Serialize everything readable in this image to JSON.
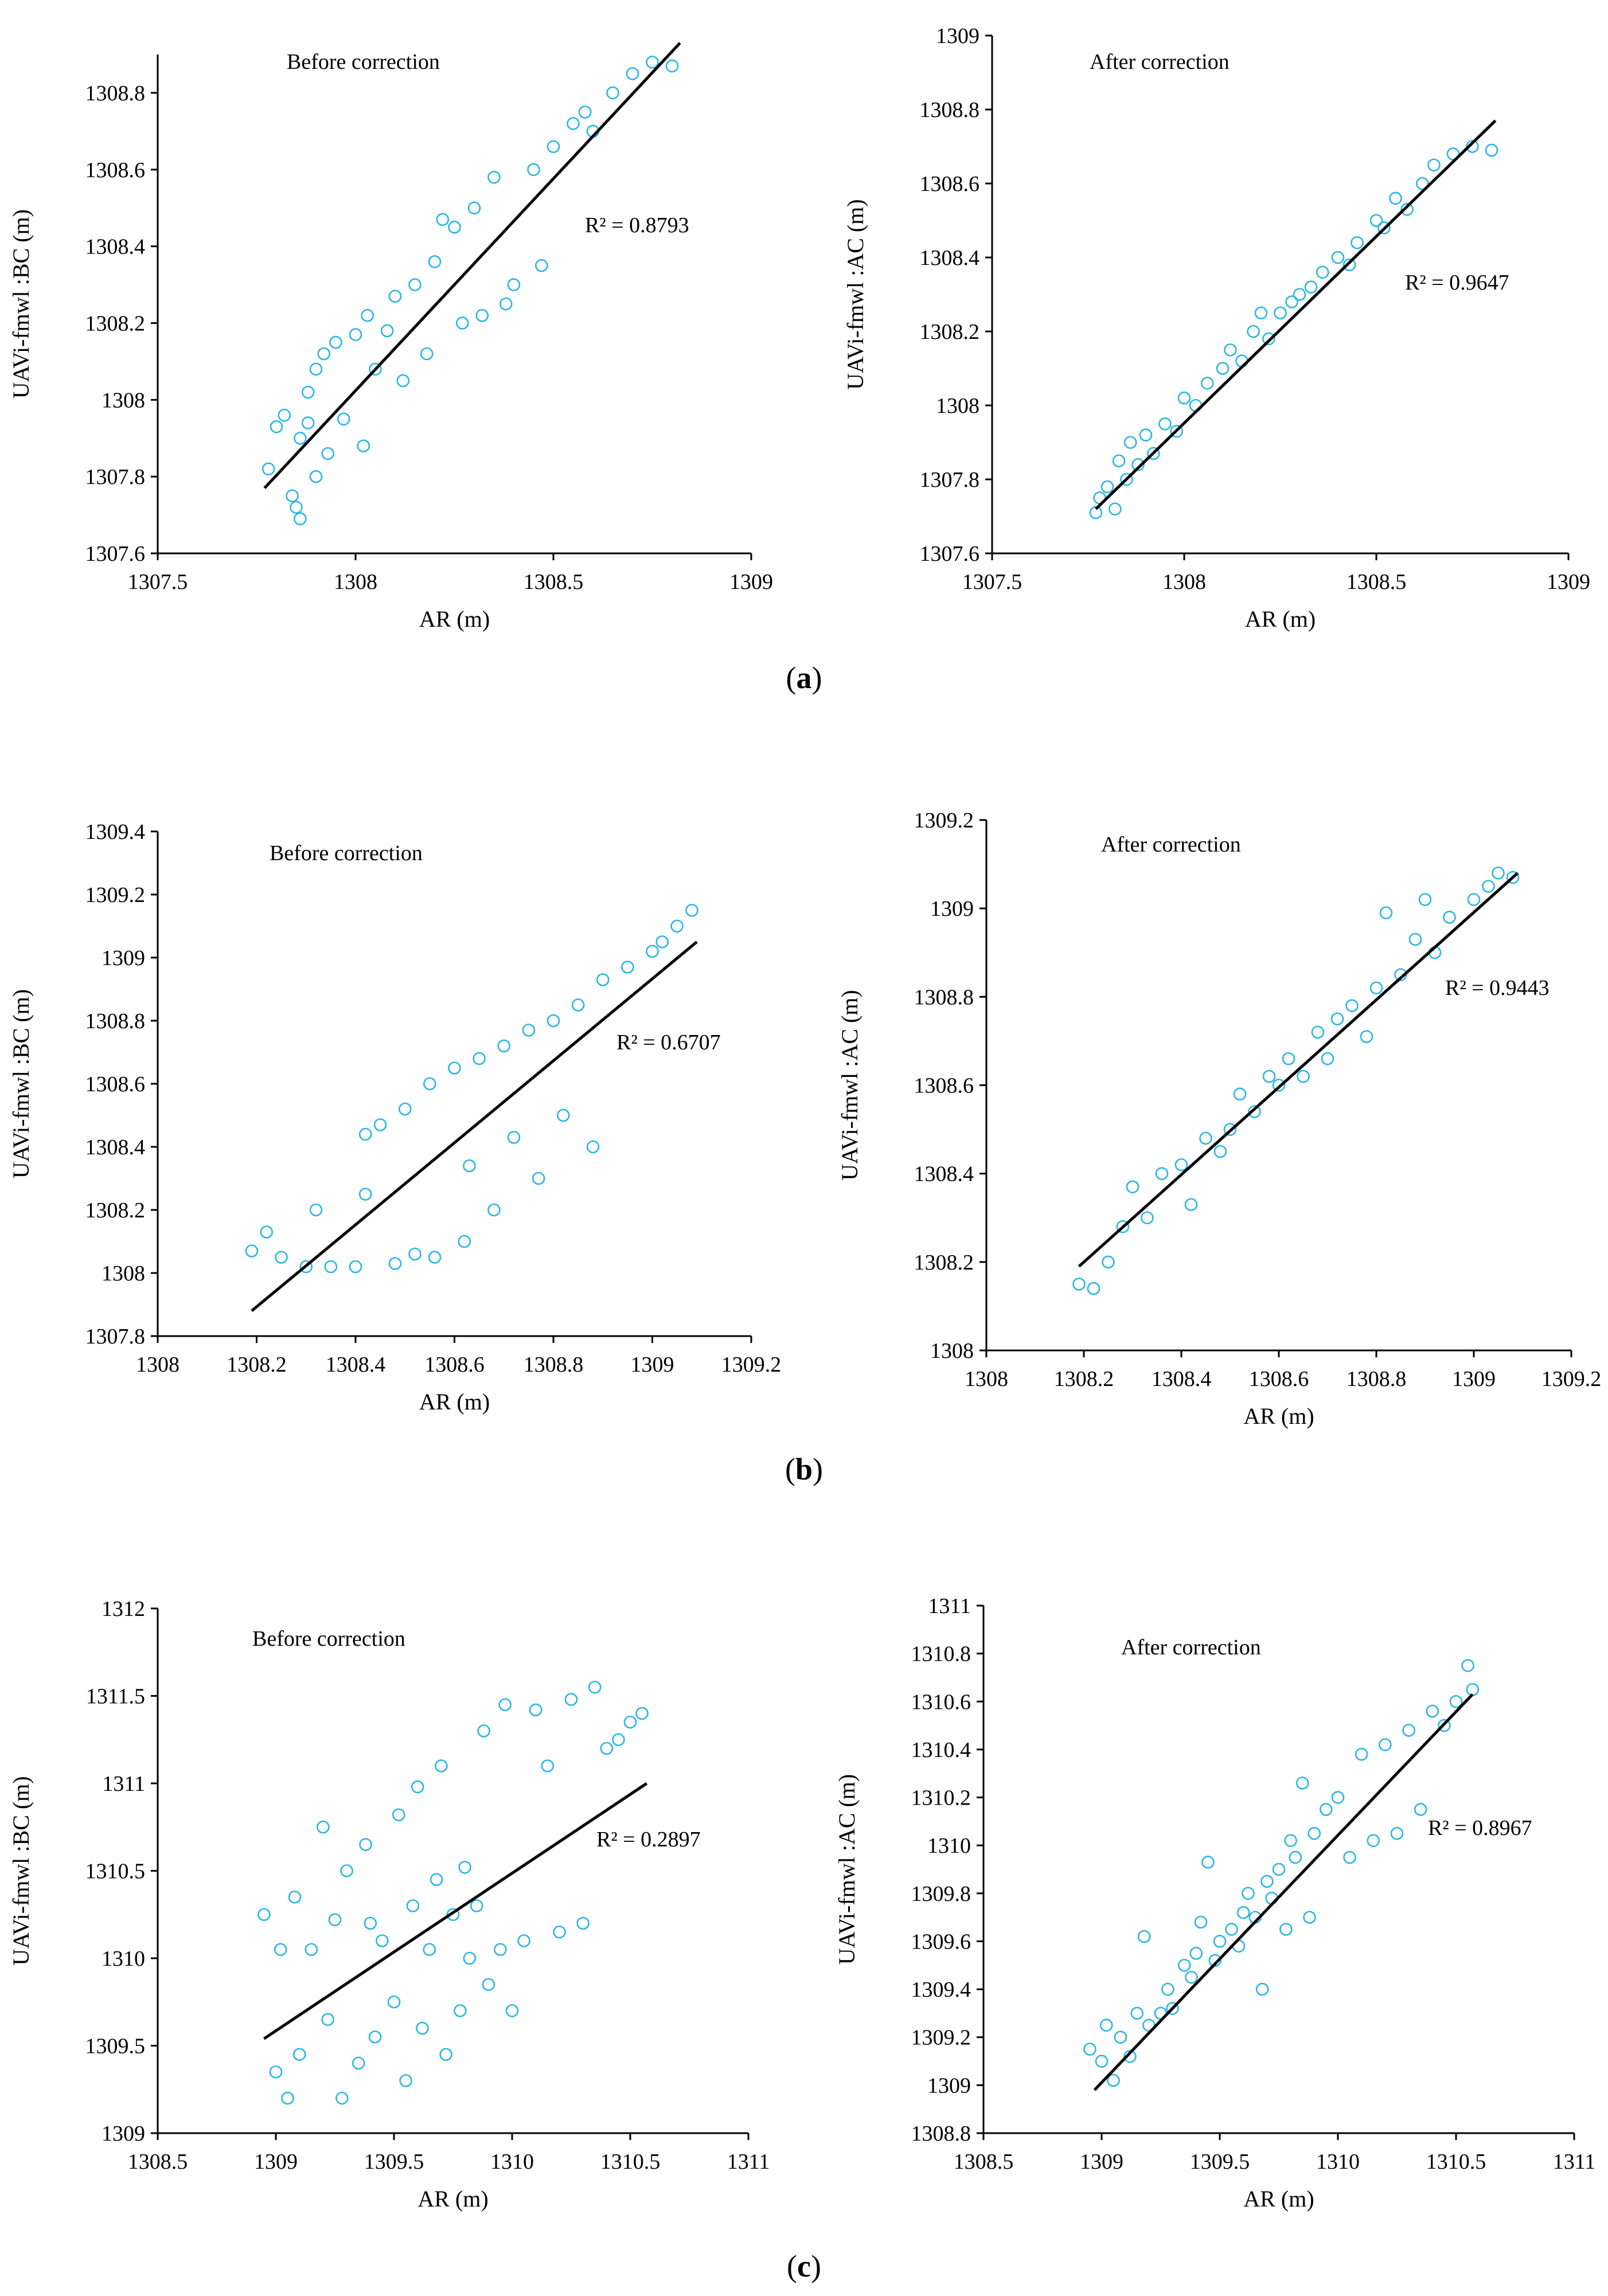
{
  "panel_labels": [
    "(a)",
    "(b)",
    "(c)"
  ],
  "chart_data": [
    {
      "type": "scatter",
      "annotation": "Before correction",
      "r2_label": "R² = 0.8793",
      "xlabel": "AR (m)",
      "ylabel": "UAVi-fmwl :BC (m)",
      "xlim": [
        1307.5,
        1309
      ],
      "ylim": [
        1307.6,
        1308.9
      ],
      "xticks": [
        "1307.5",
        "1308",
        "1308.5",
        "1309"
      ],
      "yticks": [
        "1307.6",
        "1307.8",
        "1308",
        "1308.2",
        "1308.4",
        "1308.6",
        "1308.8"
      ],
      "trendline": [
        [
          1307.77,
          1307.77
        ],
        [
          1308.82,
          1308.93
        ]
      ],
      "points": [
        [
          1307.78,
          1307.82
        ],
        [
          1307.8,
          1307.93
        ],
        [
          1307.82,
          1307.96
        ],
        [
          1307.84,
          1307.75
        ],
        [
          1307.85,
          1307.72
        ],
        [
          1307.86,
          1307.69
        ],
        [
          1307.86,
          1307.9
        ],
        [
          1307.88,
          1307.94
        ],
        [
          1307.88,
          1308.02
        ],
        [
          1307.9,
          1307.8
        ],
        [
          1307.9,
          1308.08
        ],
        [
          1307.92,
          1308.12
        ],
        [
          1307.93,
          1307.86
        ],
        [
          1307.95,
          1308.15
        ],
        [
          1307.97,
          1307.95
        ],
        [
          1308.0,
          1308.17
        ],
        [
          1308.02,
          1307.88
        ],
        [
          1308.03,
          1308.22
        ],
        [
          1308.05,
          1308.08
        ],
        [
          1308.08,
          1308.18
        ],
        [
          1308.1,
          1308.27
        ],
        [
          1308.12,
          1308.05
        ],
        [
          1308.15,
          1308.3
        ],
        [
          1308.18,
          1308.12
        ],
        [
          1308.2,
          1308.36
        ],
        [
          1308.22,
          1308.47
        ],
        [
          1308.25,
          1308.45
        ],
        [
          1308.27,
          1308.2
        ],
        [
          1308.3,
          1308.5
        ],
        [
          1308.32,
          1308.22
        ],
        [
          1308.35,
          1308.58
        ],
        [
          1308.38,
          1308.25
        ],
        [
          1308.4,
          1308.3
        ],
        [
          1308.45,
          1308.6
        ],
        [
          1308.47,
          1308.35
        ],
        [
          1308.5,
          1308.66
        ],
        [
          1308.55,
          1308.72
        ],
        [
          1308.58,
          1308.75
        ],
        [
          1308.6,
          1308.7
        ],
        [
          1308.65,
          1308.8
        ],
        [
          1308.7,
          1308.85
        ],
        [
          1308.75,
          1308.88
        ],
        [
          1308.8,
          1308.87
        ]
      ]
    },
    {
      "type": "scatter",
      "annotation": "After correction",
      "r2_label": "R² = 0.9647",
      "xlabel": "AR (m)",
      "ylabel": "UAVi-fmwl :AC (m)",
      "xlim": [
        1307.5,
        1309
      ],
      "ylim": [
        1307.6,
        1309
      ],
      "xticks": [
        "1307.5",
        "1308",
        "1308.5",
        "1309"
      ],
      "yticks": [
        "1307.6",
        "1307.8",
        "1308",
        "1308.2",
        "1308.4",
        "1308.6",
        "1308.8",
        "1309"
      ],
      "trendline": [
        [
          1307.77,
          1307.72
        ],
        [
          1308.81,
          1308.77
        ]
      ],
      "points": [
        [
          1307.77,
          1307.71
        ],
        [
          1307.78,
          1307.75
        ],
        [
          1307.8,
          1307.78
        ],
        [
          1307.82,
          1307.72
        ],
        [
          1307.83,
          1307.85
        ],
        [
          1307.85,
          1307.8
        ],
        [
          1307.86,
          1307.9
        ],
        [
          1307.88,
          1307.84
        ],
        [
          1307.9,
          1307.92
        ],
        [
          1307.92,
          1307.87
        ],
        [
          1307.95,
          1307.95
        ],
        [
          1307.98,
          1307.93
        ],
        [
          1308.0,
          1308.02
        ],
        [
          1308.03,
          1308.0
        ],
        [
          1308.06,
          1308.06
        ],
        [
          1308.1,
          1308.1
        ],
        [
          1308.12,
          1308.15
        ],
        [
          1308.15,
          1308.12
        ],
        [
          1308.18,
          1308.2
        ],
        [
          1308.2,
          1308.25
        ],
        [
          1308.22,
          1308.18
        ],
        [
          1308.25,
          1308.25
        ],
        [
          1308.28,
          1308.28
        ],
        [
          1308.3,
          1308.3
        ],
        [
          1308.33,
          1308.32
        ],
        [
          1308.36,
          1308.36
        ],
        [
          1308.4,
          1308.4
        ],
        [
          1308.43,
          1308.38
        ],
        [
          1308.45,
          1308.44
        ],
        [
          1308.5,
          1308.5
        ],
        [
          1308.52,
          1308.48
        ],
        [
          1308.55,
          1308.56
        ],
        [
          1308.58,
          1308.53
        ],
        [
          1308.62,
          1308.6
        ],
        [
          1308.65,
          1308.65
        ],
        [
          1308.7,
          1308.68
        ],
        [
          1308.75,
          1308.7
        ],
        [
          1308.8,
          1308.69
        ]
      ]
    },
    {
      "type": "scatter",
      "annotation": "Before correction",
      "r2_label": "R² = 0.6707",
      "xlabel": "AR (m)",
      "ylabel": "UAVi-fmwl :BC (m)",
      "xlim": [
        1308,
        1309.2
      ],
      "ylim": [
        1307.8,
        1309.4
      ],
      "xticks": [
        "1308",
        "1308.2",
        "1308.4",
        "1308.6",
        "1308.8",
        "1309",
        "1309.2"
      ],
      "yticks": [
        "1307.8",
        "1308",
        "1308.2",
        "1308.4",
        "1308.6",
        "1308.8",
        "1309",
        "1309.2",
        "1309.4"
      ],
      "trendline": [
        [
          1308.19,
          1307.88
        ],
        [
          1309.09,
          1309.05
        ]
      ],
      "points": [
        [
          1308.19,
          1308.07
        ],
        [
          1308.22,
          1308.13
        ],
        [
          1308.25,
          1308.05
        ],
        [
          1308.3,
          1308.02
        ],
        [
          1308.32,
          1308.2
        ],
        [
          1308.35,
          1308.02
        ],
        [
          1308.4,
          1308.02
        ],
        [
          1308.42,
          1308.25
        ],
        [
          1308.42,
          1308.44
        ],
        [
          1308.45,
          1308.47
        ],
        [
          1308.48,
          1308.03
        ],
        [
          1308.5,
          1308.52
        ],
        [
          1308.52,
          1308.06
        ],
        [
          1308.55,
          1308.6
        ],
        [
          1308.56,
          1308.05
        ],
        [
          1308.6,
          1308.65
        ],
        [
          1308.62,
          1308.1
        ],
        [
          1308.63,
          1308.34
        ],
        [
          1308.65,
          1308.68
        ],
        [
          1308.68,
          1308.2
        ],
        [
          1308.7,
          1308.72
        ],
        [
          1308.72,
          1308.43
        ],
        [
          1308.75,
          1308.77
        ],
        [
          1308.77,
          1308.3
        ],
        [
          1308.8,
          1308.8
        ],
        [
          1308.82,
          1308.5
        ],
        [
          1308.85,
          1308.85
        ],
        [
          1308.88,
          1308.4
        ],
        [
          1308.9,
          1308.93
        ],
        [
          1308.95,
          1308.97
        ],
        [
          1309.0,
          1309.02
        ],
        [
          1309.02,
          1309.05
        ],
        [
          1309.05,
          1309.1
        ],
        [
          1309.08,
          1309.15
        ]
      ]
    },
    {
      "type": "scatter",
      "annotation": "After correction",
      "r2_label": "R² = 0.9443",
      "xlabel": "AR (m)",
      "ylabel": "UAVi-fmwl :AC (m)",
      "xlim": [
        1308,
        1309.2
      ],
      "ylim": [
        1308,
        1309.2
      ],
      "xticks": [
        "1308",
        "1308.2",
        "1308.4",
        "1308.6",
        "1308.8",
        "1309",
        "1309.2"
      ],
      "yticks": [
        "1308",
        "1308.2",
        "1308.4",
        "1308.6",
        "1308.8",
        "1309",
        "1309.2"
      ],
      "trendline": [
        [
          1308.19,
          1308.19
        ],
        [
          1309.09,
          1309.08
        ]
      ],
      "points": [
        [
          1308.19,
          1308.15
        ],
        [
          1308.22,
          1308.14
        ],
        [
          1308.25,
          1308.2
        ],
        [
          1308.28,
          1308.28
        ],
        [
          1308.3,
          1308.37
        ],
        [
          1308.33,
          1308.3
        ],
        [
          1308.36,
          1308.4
        ],
        [
          1308.4,
          1308.42
        ],
        [
          1308.42,
          1308.33
        ],
        [
          1308.45,
          1308.48
        ],
        [
          1308.48,
          1308.45
        ],
        [
          1308.5,
          1308.5
        ],
        [
          1308.52,
          1308.58
        ],
        [
          1308.55,
          1308.54
        ],
        [
          1308.58,
          1308.62
        ],
        [
          1308.6,
          1308.6
        ],
        [
          1308.62,
          1308.66
        ],
        [
          1308.65,
          1308.62
        ],
        [
          1308.68,
          1308.72
        ],
        [
          1308.7,
          1308.66
        ],
        [
          1308.72,
          1308.75
        ],
        [
          1308.75,
          1308.78
        ],
        [
          1308.78,
          1308.71
        ],
        [
          1308.8,
          1308.82
        ],
        [
          1308.82,
          1308.99
        ],
        [
          1308.85,
          1308.85
        ],
        [
          1308.88,
          1308.93
        ],
        [
          1308.9,
          1309.02
        ],
        [
          1308.92,
          1308.9
        ],
        [
          1308.95,
          1308.98
        ],
        [
          1309.0,
          1309.02
        ],
        [
          1309.03,
          1309.05
        ],
        [
          1309.05,
          1309.08
        ],
        [
          1309.08,
          1309.07
        ]
      ]
    },
    {
      "type": "scatter",
      "annotation": "Before correction",
      "r2_label": "R² = 0.2897",
      "xlabel": "AR (m)",
      "ylabel": "UAVi-fmwl :BC (m)",
      "xlim": [
        1308.5,
        1311
      ],
      "ylim": [
        1309,
        1312
      ],
      "xticks": [
        "1308.5",
        "1309",
        "1309.5",
        "1310",
        "1310.5",
        "1311"
      ],
      "yticks": [
        "1309",
        "1309.5",
        "1310",
        "1310.5",
        "1311",
        "1311.5",
        "1312"
      ],
      "trendline": [
        [
          1308.95,
          1309.54
        ],
        [
          1310.57,
          1311.0
        ]
      ],
      "points": [
        [
          1308.95,
          1310.25
        ],
        [
          1309.0,
          1309.35
        ],
        [
          1309.02,
          1310.05
        ],
        [
          1309.05,
          1309.2
        ],
        [
          1309.08,
          1310.35
        ],
        [
          1309.1,
          1309.45
        ],
        [
          1309.15,
          1310.05
        ],
        [
          1309.2,
          1310.75
        ],
        [
          1309.22,
          1309.65
        ],
        [
          1309.25,
          1310.22
        ],
        [
          1309.28,
          1309.2
        ],
        [
          1309.3,
          1310.5
        ],
        [
          1309.35,
          1309.4
        ],
        [
          1309.38,
          1310.65
        ],
        [
          1309.4,
          1310.2
        ],
        [
          1309.42,
          1309.55
        ],
        [
          1309.45,
          1310.1
        ],
        [
          1309.5,
          1309.75
        ],
        [
          1309.52,
          1310.82
        ],
        [
          1309.55,
          1309.3
        ],
        [
          1309.58,
          1310.3
        ],
        [
          1309.6,
          1310.98
        ],
        [
          1309.62,
          1309.6
        ],
        [
          1309.65,
          1310.05
        ],
        [
          1309.68,
          1310.45
        ],
        [
          1309.7,
          1311.1
        ],
        [
          1309.72,
          1309.45
        ],
        [
          1309.75,
          1310.25
        ],
        [
          1309.78,
          1309.7
        ],
        [
          1309.8,
          1310.52
        ],
        [
          1309.82,
          1310.0
        ],
        [
          1309.85,
          1310.3
        ],
        [
          1309.88,
          1311.3
        ],
        [
          1309.9,
          1309.85
        ],
        [
          1309.95,
          1310.05
        ],
        [
          1309.97,
          1311.45
        ],
        [
          1310.0,
          1309.7
        ],
        [
          1310.05,
          1310.1
        ],
        [
          1310.1,
          1311.42
        ],
        [
          1310.15,
          1311.1
        ],
        [
          1310.2,
          1310.15
        ],
        [
          1310.25,
          1311.48
        ],
        [
          1310.3,
          1310.2
        ],
        [
          1310.35,
          1311.55
        ],
        [
          1310.4,
          1311.2
        ],
        [
          1310.45,
          1311.25
        ],
        [
          1310.5,
          1311.35
        ],
        [
          1310.55,
          1311.4
        ]
      ]
    },
    {
      "type": "scatter",
      "annotation": "After correction",
      "r2_label": "R² = 0.8967",
      "xlabel": "AR (m)",
      "ylabel": "UAVi-fmwl :AC (m)",
      "xlim": [
        1308.5,
        1311
      ],
      "ylim": [
        1308.8,
        1311
      ],
      "xticks": [
        "1308.5",
        "1309",
        "1309.5",
        "1310",
        "1310.5",
        "1311"
      ],
      "yticks": [
        "1308.8",
        "1309",
        "1309.2",
        "1309.4",
        "1309.6",
        "1309.8",
        "1310",
        "1310.2",
        "1310.4",
        "1310.6",
        "1310.8",
        "1311"
      ],
      "trendline": [
        [
          1308.97,
          1308.98
        ],
        [
          1310.57,
          1310.63
        ]
      ],
      "points": [
        [
          1308.95,
          1309.15
        ],
        [
          1309.0,
          1309.1
        ],
        [
          1309.02,
          1309.25
        ],
        [
          1309.05,
          1309.02
        ],
        [
          1309.08,
          1309.2
        ],
        [
          1309.12,
          1309.12
        ],
        [
          1309.15,
          1309.3
        ],
        [
          1309.18,
          1309.62
        ],
        [
          1309.2,
          1309.25
        ],
        [
          1309.25,
          1309.3
        ],
        [
          1309.28,
          1309.4
        ],
        [
          1309.3,
          1309.32
        ],
        [
          1309.35,
          1309.5
        ],
        [
          1309.38,
          1309.45
        ],
        [
          1309.4,
          1309.55
        ],
        [
          1309.42,
          1309.68
        ],
        [
          1309.45,
          1309.93
        ],
        [
          1309.48,
          1309.52
        ],
        [
          1309.5,
          1309.6
        ],
        [
          1309.55,
          1309.65
        ],
        [
          1309.58,
          1309.58
        ],
        [
          1309.6,
          1309.72
        ],
        [
          1309.62,
          1309.8
        ],
        [
          1309.65,
          1309.7
        ],
        [
          1309.68,
          1309.4
        ],
        [
          1309.7,
          1309.85
        ],
        [
          1309.72,
          1309.78
        ],
        [
          1309.75,
          1309.9
        ],
        [
          1309.78,
          1309.65
        ],
        [
          1309.8,
          1310.02
        ],
        [
          1309.82,
          1309.95
        ],
        [
          1309.85,
          1310.26
        ],
        [
          1309.88,
          1309.7
        ],
        [
          1309.9,
          1310.05
        ],
        [
          1309.95,
          1310.15
        ],
        [
          1310.0,
          1310.2
        ],
        [
          1310.05,
          1309.95
        ],
        [
          1310.1,
          1310.38
        ],
        [
          1310.15,
          1310.02
        ],
        [
          1310.2,
          1310.42
        ],
        [
          1310.25,
          1310.05
        ],
        [
          1310.3,
          1310.48
        ],
        [
          1310.35,
          1310.15
        ],
        [
          1310.4,
          1310.56
        ],
        [
          1310.45,
          1310.5
        ],
        [
          1310.5,
          1310.6
        ],
        [
          1310.55,
          1310.75
        ],
        [
          1310.57,
          1310.65
        ]
      ]
    }
  ]
}
